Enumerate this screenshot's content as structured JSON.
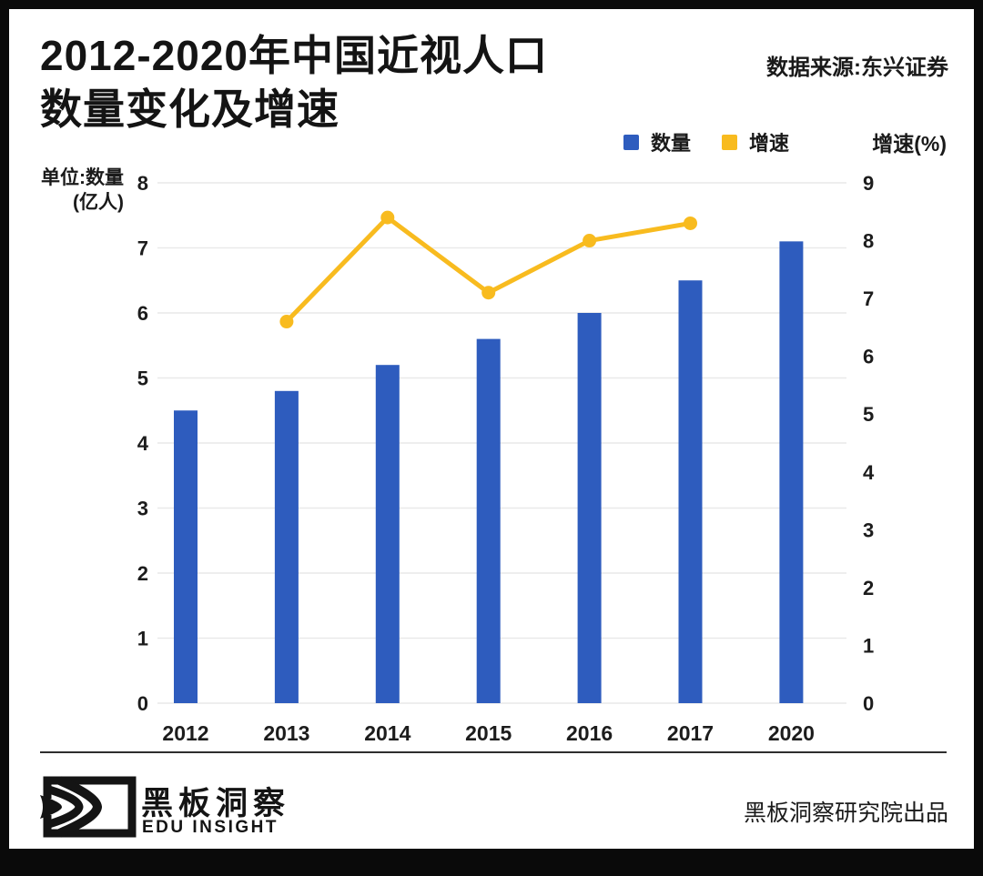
{
  "window": {
    "frame_color": "#0a0a0a",
    "background": "#ffffff"
  },
  "header": {
    "title_line1": "2012-2020年中国近视人口",
    "title_line2": "数量变化及增速",
    "source": "数据来源:东兴证券"
  },
  "legend": {
    "items": [
      {
        "label": "数量",
        "color": "#2e5cbe"
      },
      {
        "label": "增速",
        "color": "#f8bb1f"
      }
    ],
    "right_axis_title": "增速(%)"
  },
  "left_axis_unit": {
    "line1": "单位:数量",
    "line2": "(亿人)"
  },
  "chart_data": {
    "type": "bar",
    "subtype": "bar+line combo, dual axis",
    "title": "2012-2020年中国近视人口数量变化及增速",
    "categories": [
      "2012",
      "2013",
      "2014",
      "2015",
      "2016",
      "2017",
      "2020"
    ],
    "series": [
      {
        "name": "数量",
        "type": "bar",
        "axis": "left",
        "color": "#2e5cbe",
        "values": [
          4.5,
          4.8,
          5.2,
          5.6,
          6.0,
          6.5,
          7.1
        ]
      },
      {
        "name": "增速",
        "type": "line",
        "axis": "right",
        "color": "#f8bb1f",
        "values": [
          null,
          6.6,
          8.4,
          7.1,
          8.0,
          8.3,
          null
        ]
      }
    ],
    "left_axis": {
      "label": "单位:数量(亿人)",
      "min": 0,
      "max": 8,
      "ticks": [
        0,
        1,
        2,
        3,
        4,
        5,
        6,
        7,
        8
      ]
    },
    "right_axis": {
      "label": "增速(%)",
      "min": 0,
      "max": 9,
      "ticks": [
        0,
        1,
        2,
        3,
        4,
        5,
        6,
        7,
        8,
        9
      ]
    },
    "grid": true,
    "gridline_color": "#e9e9e9",
    "legend_position": "top-right"
  },
  "footer": {
    "logo": "eye-logo",
    "brand_cn": "黑板洞察",
    "brand_en": "EDU INSIGHT",
    "credit": "黑板洞察研究院出品"
  }
}
